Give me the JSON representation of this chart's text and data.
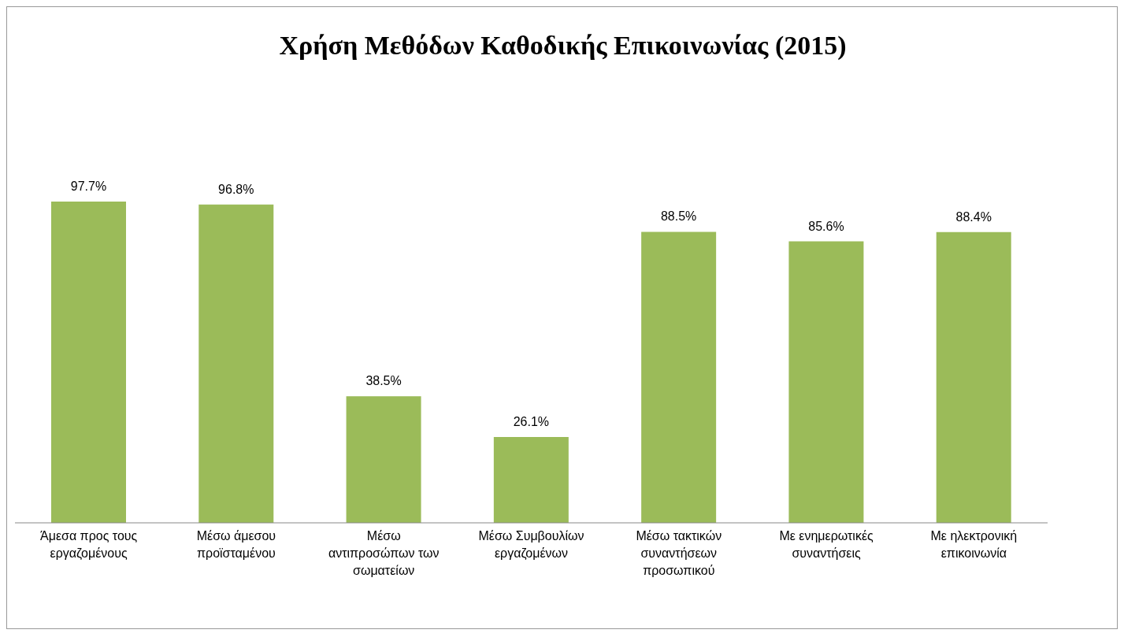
{
  "chart_data": {
    "type": "bar",
    "title": "Χρήση Μεθόδων Καθοδικής Επικοινωνίας (2015)",
    "categories": [
      "Άμεσα προς τους εργαζομένους",
      "Μέσω άμεσου προϊσταμένου",
      "Μέσω αντιπροσώπων των σωματείων",
      "Μέσω Συμβουλίων εργαζομένων",
      "Μέσω τακτικών συναντήσεων προσωπικού",
      "Με ενημερωτικές συναντήσεις",
      "Με ηλεκτρονική επικοινωνία"
    ],
    "values": [
      97.7,
      96.8,
      38.5,
      26.1,
      88.5,
      85.6,
      88.4
    ],
    "value_labels": [
      "97.7%",
      "96.8%",
      "38.5%",
      "26.1%",
      "88.5%",
      "85.6%",
      "88.4%"
    ],
    "color": "#9bbb59",
    "grid": false,
    "legend": false
  }
}
